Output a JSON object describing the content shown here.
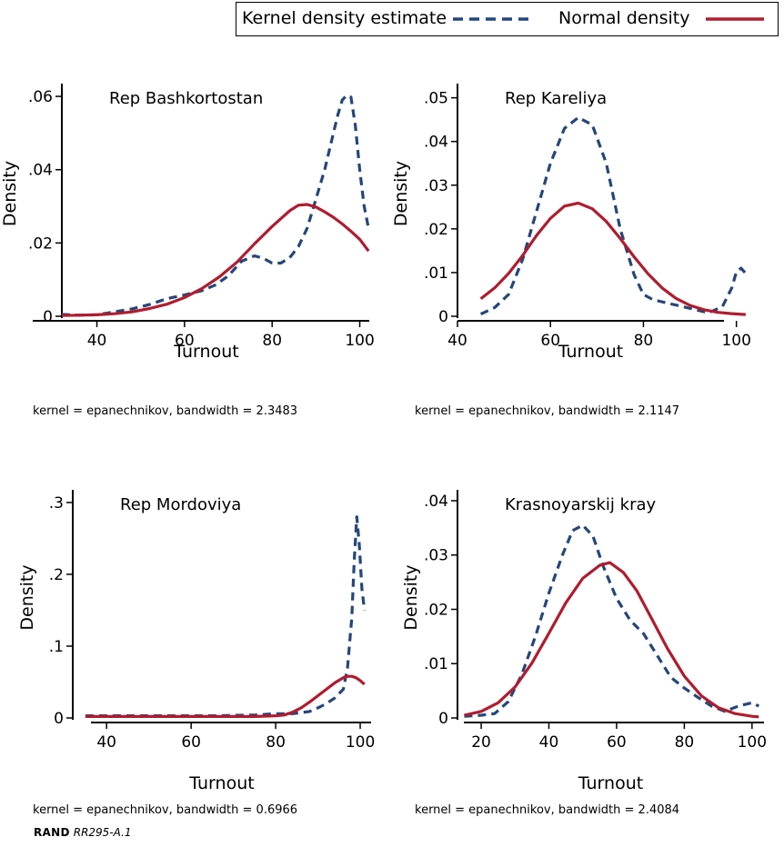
{
  "legend": {
    "kernel_label": "Kernel density estimate",
    "normal_label": "Normal density"
  },
  "colors": {
    "kernel": "#24467a",
    "normal": "#b01c2e"
  },
  "footer": {
    "brand": "RAND",
    "code": "RR295-A.1"
  },
  "chart_data": [
    {
      "type": "line",
      "title": "Rep Bashkortostan",
      "xlabel": "Turnout",
      "ylabel": "Density",
      "note": "kernel = epanechnikov, bandwidth = 2.3483",
      "xlim": [
        32,
        103
      ],
      "ylim": [
        0,
        0.062
      ],
      "xticks": [
        40,
        60,
        80,
        100
      ],
      "xtick_labels": [
        "40",
        "60",
        "80",
        "100"
      ],
      "yticks": [
        0,
        0.02,
        0.04,
        0.06
      ],
      "ytick_labels": [
        "0",
        ".02",
        ".04",
        ".06"
      ],
      "series": [
        {
          "name": "Kernel density estimate",
          "style": "dashed",
          "x": [
            32,
            36,
            40,
            44,
            48,
            52,
            56,
            60,
            64,
            67,
            70,
            73,
            76,
            78,
            80,
            82,
            84,
            86,
            88,
            90,
            92,
            94,
            95,
            96,
            97,
            98,
            99,
            100,
            101,
            102
          ],
          "y": [
            0.0005,
            0.0003,
            0.0004,
            0.0012,
            0.002,
            0.0032,
            0.0048,
            0.0058,
            0.007,
            0.0085,
            0.011,
            0.015,
            0.0165,
            0.0158,
            0.0145,
            0.0145,
            0.016,
            0.019,
            0.024,
            0.032,
            0.04,
            0.05,
            0.055,
            0.059,
            0.0603,
            0.0598,
            0.052,
            0.04,
            0.03,
            0.024
          ]
        },
        {
          "name": "Normal density",
          "style": "solid",
          "x": [
            32,
            36,
            40,
            44,
            48,
            52,
            56,
            60,
            64,
            68,
            72,
            76,
            80,
            84,
            86,
            88,
            90,
            92,
            94,
            96,
            98,
            100,
            102
          ],
          "y": [
            0.0002,
            0.0003,
            0.0004,
            0.0007,
            0.0012,
            0.0021,
            0.0033,
            0.0051,
            0.0076,
            0.0108,
            0.0148,
            0.0198,
            0.0245,
            0.0288,
            0.0303,
            0.0305,
            0.0298,
            0.0285,
            0.027,
            0.0252,
            0.0232,
            0.021,
            0.0178
          ]
        }
      ]
    },
    {
      "type": "line",
      "title": "Rep Kareliya",
      "xlabel": "Turnout",
      "ylabel": "Density",
      "note": "kernel = epanechnikov, bandwidth = 2.1147",
      "xlim": [
        40,
        103
      ],
      "ylim": [
        0,
        0.052
      ],
      "xticks": [
        40,
        60,
        80,
        100
      ],
      "xtick_labels": [
        "40",
        "60",
        "80",
        "100"
      ],
      "yticks": [
        0,
        0.01,
        0.02,
        0.03,
        0.04,
        0.05
      ],
      "ytick_labels": [
        "0",
        ".01",
        ".02",
        ".03",
        ".04",
        ".05"
      ],
      "series": [
        {
          "name": "Kernel density estimate",
          "style": "dashed",
          "x": [
            45,
            48,
            51,
            54,
            57,
            60,
            63,
            66,
            69,
            72,
            75,
            78,
            80,
            82,
            86,
            90,
            94,
            97,
            99,
            100,
            101,
            102
          ],
          "y": [
            0.0005,
            0.002,
            0.005,
            0.013,
            0.024,
            0.035,
            0.043,
            0.0455,
            0.0438,
            0.035,
            0.02,
            0.0095,
            0.005,
            0.0038,
            0.0028,
            0.0018,
            0.0008,
            0.0022,
            0.0065,
            0.0102,
            0.011,
            0.0098
          ]
        },
        {
          "name": "Normal density",
          "style": "solid",
          "x": [
            45,
            48,
            51,
            54,
            57,
            60,
            63,
            66,
            69,
            72,
            75,
            78,
            81,
            84,
            87,
            90,
            93,
            96,
            99,
            102
          ],
          "y": [
            0.004,
            0.0065,
            0.0098,
            0.0139,
            0.0185,
            0.0224,
            0.0252,
            0.0259,
            0.0246,
            0.0217,
            0.0178,
            0.0136,
            0.0097,
            0.0065,
            0.0041,
            0.0025,
            0.0015,
            0.0009,
            0.0006,
            0.0004
          ]
        }
      ]
    },
    {
      "type": "line",
      "title": "Rep Mordoviya",
      "xlabel": "Turnout",
      "ylabel": "Density",
      "note": "kernel = epanechnikov, bandwidth = 0.6966",
      "xlim": [
        32,
        103
      ],
      "ylim": [
        0,
        0.31
      ],
      "xticks": [
        40,
        60,
        80,
        100
      ],
      "xtick_labels": [
        "40",
        "60",
        "80",
        "100"
      ],
      "yticks": [
        0,
        0.1,
        0.2,
        0.3
      ],
      "ytick_labels": [
        "0",
        ".1",
        ".2",
        ".3"
      ],
      "series": [
        {
          "name": "Kernel density estimate",
          "style": "dashed",
          "x": [
            35,
            45,
            55,
            65,
            75,
            80,
            84,
            88,
            90,
            92,
            94,
            96,
            97,
            98,
            98.6,
            99.2,
            99.8,
            100.4,
            101
          ],
          "y": [
            0.003,
            0.003,
            0.003,
            0.003,
            0.004,
            0.006,
            0.006,
            0.009,
            0.014,
            0.02,
            0.028,
            0.04,
            0.07,
            0.14,
            0.22,
            0.28,
            0.24,
            0.18,
            0.15
          ]
        },
        {
          "name": "Normal density",
          "style": "solid",
          "x": [
            35,
            45,
            55,
            65,
            75,
            80,
            82,
            84,
            86,
            88,
            90,
            92,
            94,
            96,
            97,
            98,
            99,
            100,
            101
          ],
          "y": [
            0.002,
            0.002,
            0.002,
            0.002,
            0.002,
            0.003,
            0.004,
            0.008,
            0.014,
            0.022,
            0.031,
            0.04,
            0.049,
            0.056,
            0.058,
            0.058,
            0.056,
            0.052,
            0.047
          ]
        }
      ]
    },
    {
      "type": "line",
      "title": "Krasnoyarskij kray",
      "xlabel": "Turnout",
      "ylabel": "Density",
      "note": "kernel = epanechnikov, bandwidth = 2.4084",
      "xlim": [
        13,
        103
      ],
      "ylim": [
        0,
        0.041
      ],
      "xticks": [
        20,
        40,
        60,
        80,
        100
      ],
      "xtick_labels": [
        "20",
        "40",
        "60",
        "80",
        "100"
      ],
      "yticks": [
        0,
        0.01,
        0.02,
        0.03,
        0.04
      ],
      "ytick_labels": [
        "0",
        ".01",
        ".02",
        ".03",
        ".04"
      ],
      "series": [
        {
          "name": "Kernel density estimate",
          "style": "dashed",
          "x": [
            15,
            20,
            24,
            28,
            32,
            36,
            40,
            44,
            47,
            50,
            53,
            56,
            60,
            64,
            68,
            72,
            76,
            80,
            84,
            88,
            92,
            96,
            100,
            102
          ],
          "y": [
            0.0003,
            0.0005,
            0.0008,
            0.003,
            0.008,
            0.015,
            0.023,
            0.03,
            0.0345,
            0.0355,
            0.0335,
            0.028,
            0.022,
            0.018,
            0.0155,
            0.0115,
            0.0075,
            0.0055,
            0.0038,
            0.0022,
            0.0012,
            0.0022,
            0.0028,
            0.0022
          ]
        },
        {
          "name": "Normal density",
          "style": "solid",
          "x": [
            15,
            20,
            25,
            30,
            35,
            40,
            45,
            50,
            55,
            58,
            62,
            66,
            70,
            75,
            80,
            85,
            90,
            95,
            100,
            102
          ],
          "y": [
            0.0005,
            0.0012,
            0.0028,
            0.0057,
            0.0101,
            0.0156,
            0.0212,
            0.0257,
            0.0281,
            0.0286,
            0.0268,
            0.0234,
            0.0187,
            0.0128,
            0.0077,
            0.0041,
            0.0019,
            0.0008,
            0.0003,
            0.0002
          ]
        }
      ]
    }
  ]
}
